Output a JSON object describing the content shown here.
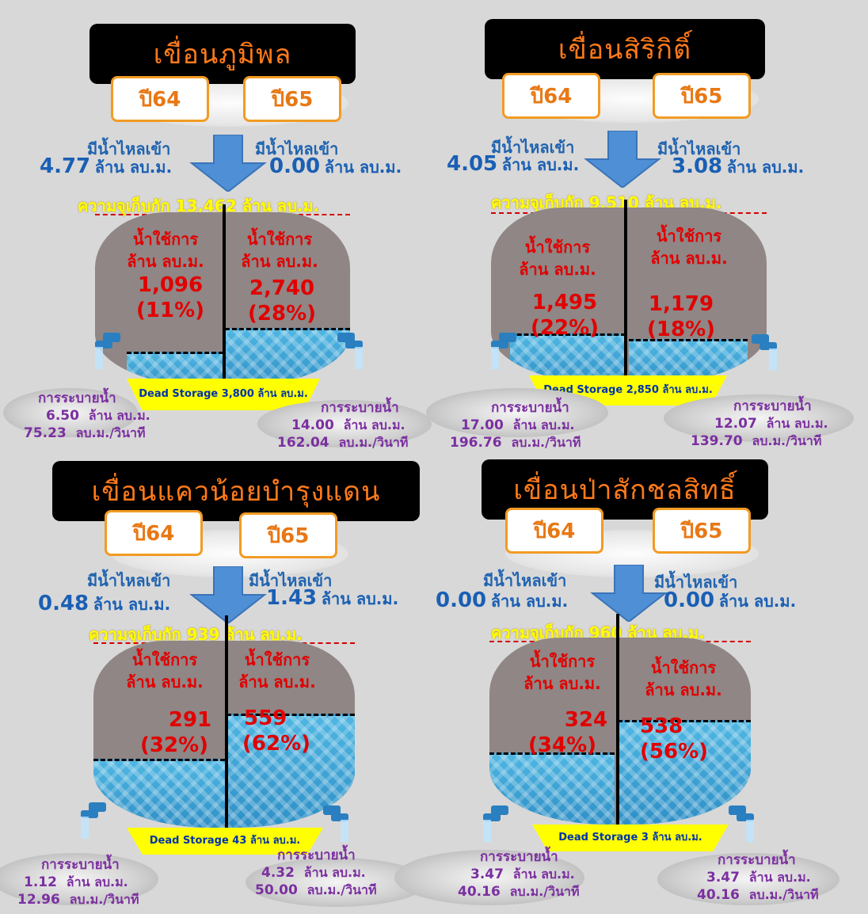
{
  "common": {
    "inflow_label": "มีน้ำไหลเข้า",
    "unit_mcm": "ล้าน ลบ.ม.",
    "usable_label_line1": "น้ำใช้การ",
    "usable_label_line2": "ล้าน ลบ.ม.",
    "release_label": "การระบายน้ำ",
    "unit_cms": "ลบ.ม./วินาที"
  },
  "dams": [
    {
      "name": "เขื่อนภูมิพล",
      "year_left": "ปี64",
      "year_right": "ปี65",
      "inflow_left": "4.77",
      "inflow_right": "0.00",
      "capacity_text": "ความจุเก็บกัก 13,462 ล้าน ลบ.ม.",
      "usable_left": "1,096",
      "usable_left_pct": "(11%)",
      "usable_right": "2,740",
      "usable_right_pct": "(28%)",
      "dead_storage": "Dead Storage 3,800 ล้าน ลบ.ม.",
      "release_left_mcm": "6.50",
      "release_left_cms": "75.23",
      "release_right_mcm": "14.00",
      "release_right_cms": "162.04",
      "fill_left": 0.11,
      "fill_right": 0.28
    },
    {
      "name": "เขื่อนสิริกิติ์",
      "year_left": "ปี64",
      "year_right": "ปี65",
      "inflow_left": "4.05",
      "inflow_right": "3.08",
      "capacity_text": "ความจุเก็บกัก 9,510 ล้าน ลบ.ม.",
      "usable_left": "1,495",
      "usable_left_pct": "(22%)",
      "usable_right": "1,179",
      "usable_right_pct": "(18%)",
      "dead_storage": "Dead Storage 2,850 ล้าน ลบ.ม.",
      "release_left_mcm": "17.00",
      "release_left_cms": "196.76",
      "release_right_mcm": "12.07",
      "release_right_cms": "139.70",
      "fill_left": 0.22,
      "fill_right": 0.18
    },
    {
      "name": "เขื่อนแควน้อยบำรุงแดน",
      "year_left": "ปี64",
      "year_right": "ปี65",
      "inflow_left": "0.48",
      "inflow_right": "1.43",
      "capacity_text": "ความจุเก็บกัก 939 ล้าน ลบ.ม.",
      "usable_left": "291",
      "usable_left_pct": "(32%)",
      "usable_right": "559",
      "usable_right_pct": "(62%)",
      "dead_storage": "Dead Storage 43 ล้าน ลบ.ม.",
      "release_left_mcm": "1.12",
      "release_left_cms": "12.96",
      "release_right_mcm": "4.32",
      "release_right_cms": "50.00",
      "fill_left": 0.32,
      "fill_right": 0.62
    },
    {
      "name": "เขื่อนป่าสักชลสิทธิ์",
      "year_left": "ปี64",
      "year_right": "ปี65",
      "inflow_left": "0.00",
      "inflow_right": "0.00",
      "capacity_text": "ความจุเก็บกัก 960 ล้าน ลบ.ม.",
      "usable_left": "324",
      "usable_left_pct": "(34%)",
      "usable_right": "538",
      "usable_right_pct": "(56%)",
      "dead_storage": "Dead Storage 3 ล้าน ลบ.ม.",
      "release_left_mcm": "3.47",
      "release_left_cms": "40.16",
      "release_right_mcm": "3.47",
      "release_right_cms": "40.16",
      "fill_left": 0.34,
      "fill_right": 0.56
    }
  ],
  "colors": {
    "title_bg": "#000000",
    "title_text": "#ff7a1a",
    "year_border": "#f29b24",
    "inflow_blue": "#1f63b0",
    "capacity_yellow": "#ffff00",
    "usable_red": "#e10000",
    "release_purple": "#7b2fa0",
    "water_blue": "#3aa3d6",
    "jar_gray": "#8f8685"
  },
  "icons": [
    "down-arrow-icon",
    "water-tap-icon",
    "cloud-shape",
    "drain-plate"
  ]
}
